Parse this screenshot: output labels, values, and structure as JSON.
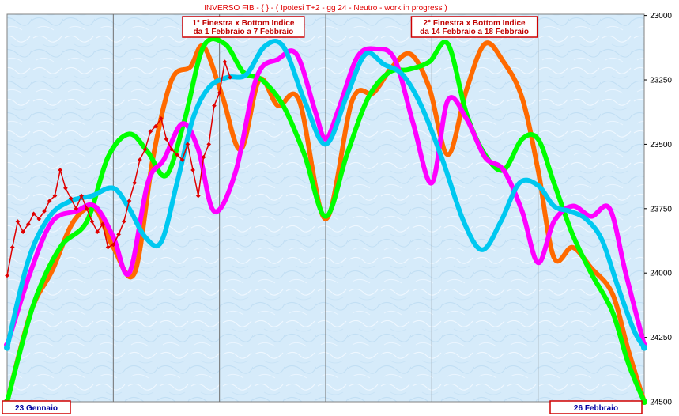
{
  "chart_data": {
    "type": "line",
    "title": "INVERSO FIB  -  { } - ( Ipotesi T+2  - gg 24  - Neutro - work in progress )",
    "ylim": [
      22995,
      24500
    ],
    "y_inverted": true,
    "yticks": [
      23000,
      23250,
      23500,
      23750,
      24000,
      24250,
      24500
    ],
    "ytick_labels": [
      "23000",
      "23250",
      "23500",
      "23750",
      "24000",
      "24250",
      "24500"
    ],
    "xlim": [
      0,
      24
    ],
    "vertical_gridlines_x": [
      0,
      4,
      8,
      12,
      16,
      20,
      24
    ],
    "grid": true,
    "legend": "none",
    "x_start_label": "23  Gennaio",
    "x_end_label": "26  Febbraio",
    "annotations": [
      {
        "line1": "1° Finestra x Bottom Indice",
        "line2": "da 1 Febbraio a 7 Febbraio",
        "x": 8.9
      },
      {
        "line1": "2° Finestra x Bottom Indice",
        "line2": "da 14 Febbraio a 18 Febbraio",
        "x": 17.6
      }
    ],
    "series": [
      {
        "color": "#ff6a00",
        "x": [
          0,
          0.9,
          1.7,
          2.5,
          3.3,
          4.0,
          4.8,
          5.5,
          6.2,
          6.9,
          7.4,
          8.1,
          8.8,
          9.5,
          10.2,
          11.0,
          12.0,
          13.0,
          13.8,
          14.5,
          15.2,
          15.9,
          16.6,
          17.3,
          18.0,
          18.7,
          19.4,
          20.0,
          20.6,
          21.3,
          22.0,
          22.8,
          23.4,
          24.0
        ],
        "values": [
          24500,
          24150,
          23990,
          23800,
          23750,
          23900,
          24000,
          23550,
          23250,
          23200,
          23120,
          23310,
          23520,
          23250,
          23350,
          23330,
          23790,
          23330,
          23300,
          23200,
          23150,
          23280,
          23540,
          23290,
          23110,
          23180,
          23320,
          23600,
          23940,
          23900,
          23980,
          24080,
          24300,
          24500
        ]
      },
      {
        "color": "#00ff00",
        "x": [
          0,
          1.0,
          2.0,
          3.0,
          3.8,
          4.6,
          5.3,
          6.0,
          6.7,
          7.4,
          8.2,
          8.9,
          9.6,
          10.4,
          11.2,
          12.0,
          12.8,
          13.6,
          14.4,
          15.1,
          15.9,
          16.6,
          17.3,
          18.0,
          18.7,
          19.4,
          20.0,
          20.6,
          21.3,
          22.0,
          22.8,
          23.4,
          24.0
        ],
        "values": [
          24500,
          24120,
          23900,
          23800,
          23550,
          23460,
          23530,
          23620,
          23400,
          23120,
          23110,
          23220,
          23250,
          23350,
          23540,
          23780,
          23540,
          23320,
          23220,
          23210,
          23180,
          23110,
          23380,
          23540,
          23600,
          23480,
          23480,
          23650,
          23850,
          24000,
          24150,
          24350,
          24500
        ]
      },
      {
        "color": "#ff00ff",
        "x": [
          0,
          0.9,
          1.7,
          2.6,
          3.3,
          4.0,
          4.6,
          5.3,
          5.9,
          6.6,
          7.2,
          7.8,
          8.6,
          9.4,
          10.2,
          10.9,
          11.6,
          12.0,
          12.5,
          13.2,
          13.9,
          14.6,
          15.3,
          16.0,
          16.6,
          17.3,
          18.0,
          18.7,
          19.4,
          20.0,
          20.6,
          21.3,
          22.0,
          22.7,
          23.3,
          24.0
        ],
        "values": [
          24280,
          23990,
          23800,
          23760,
          23740,
          23860,
          24000,
          23650,
          23560,
          23420,
          23520,
          23760,
          23610,
          23240,
          23170,
          23150,
          23370,
          23480,
          23360,
          23160,
          23130,
          23170,
          23420,
          23650,
          23330,
          23400,
          23550,
          23600,
          23760,
          23960,
          23800,
          23740,
          23780,
          23750,
          24000,
          24280
        ]
      },
      {
        "color": "#00c8f0",
        "x": [
          0,
          0.8,
          1.6,
          2.4,
          3.2,
          4.0,
          4.6,
          5.2,
          5.8,
          6.4,
          7.0,
          7.6,
          8.3,
          9.0,
          9.7,
          10.4,
          11.2,
          12.0,
          12.8,
          13.5,
          14.2,
          14.9,
          15.6,
          16.4,
          17.2,
          17.9,
          18.6,
          19.3,
          20.0,
          20.6,
          21.2,
          21.8,
          22.4,
          23.0,
          23.6,
          24.0
        ],
        "values": [
          24290,
          23950,
          23780,
          23720,
          23700,
          23670,
          23750,
          23860,
          23880,
          23650,
          23400,
          23280,
          23240,
          23230,
          23120,
          23120,
          23330,
          23500,
          23310,
          23150,
          23190,
          23230,
          23350,
          23560,
          23800,
          23910,
          23800,
          23650,
          23660,
          23740,
          23760,
          23790,
          23870,
          24050,
          24220,
          24290
        ]
      },
      {
        "color": "#e00000",
        "markers": true,
        "x": [
          0,
          0.2,
          0.4,
          0.6,
          0.8,
          1.0,
          1.2,
          1.4,
          1.6,
          1.8,
          2.0,
          2.2,
          2.4,
          2.6,
          2.8,
          3.0,
          3.2,
          3.4,
          3.6,
          3.8,
          4.0,
          4.2,
          4.4,
          4.6,
          4.8,
          5.0,
          5.2,
          5.4,
          5.6,
          5.8,
          6.0,
          6.2,
          6.4,
          6.6,
          6.8,
          7.0,
          7.2,
          7.4,
          7.6,
          7.8,
          8.0,
          8.2,
          8.4
        ],
        "values": [
          24010,
          23900,
          23800,
          23840,
          23810,
          23770,
          23790,
          23760,
          23720,
          23700,
          23600,
          23670,
          23710,
          23750,
          23700,
          23750,
          23800,
          23840,
          23810,
          23900,
          23890,
          23850,
          23800,
          23720,
          23650,
          23560,
          23520,
          23450,
          23430,
          23400,
          23480,
          23520,
          23540,
          23560,
          23500,
          23600,
          23700,
          23550,
          23500,
          23350,
          23300,
          23180,
          23240
        ]
      }
    ]
  }
}
